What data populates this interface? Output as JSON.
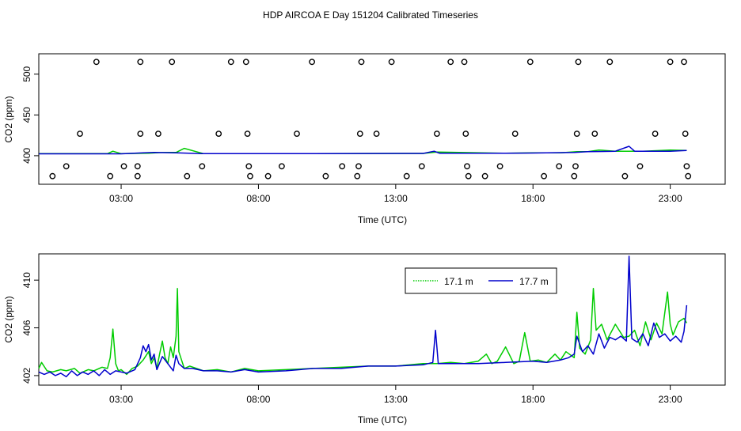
{
  "title": "HDP AIRCOA E  Day 151204  Calibrated Timeseries",
  "colors": {
    "green": "#00cc00",
    "blue": "#0000cc",
    "axis": "#000000"
  },
  "chart_data": [
    {
      "type": "line",
      "panel": "top",
      "xlabel": "Time (UTC)",
      "ylabel": "CO2 (ppm)",
      "xlim": [
        0.0,
        25.0
      ],
      "ylim": [
        365,
        525
      ],
      "x_ticks": [
        3,
        8,
        13,
        18,
        23
      ],
      "x_tick_labels": [
        "03:00",
        "08:00",
        "13:00",
        "18:00",
        "23:00"
      ],
      "y_ticks": [
        400,
        450,
        500
      ],
      "y_tick_labels": [
        "400",
        "450",
        "500"
      ],
      "grid": false,
      "series": [
        {
          "color": "#00cc00",
          "x": [
            0.0,
            2.5,
            2.7,
            3.0,
            4.0,
            4.5,
            5.0,
            5.3,
            6.0,
            10.0,
            14.0,
            14.5,
            17.0,
            18.0,
            19.0,
            19.6,
            20.0,
            20.4,
            21.0,
            22.0,
            23.0,
            23.6
          ],
          "values": [
            402.5,
            402.5,
            405.5,
            402.5,
            403.0,
            404.0,
            404.0,
            409.0,
            402.5,
            402.6,
            402.8,
            404.5,
            403.0,
            403.5,
            403.5,
            405.0,
            405.0,
            407.0,
            405.5,
            405.5,
            407.0,
            406.5
          ]
        },
        {
          "color": "#0000cc",
          "x": [
            0.0,
            3.0,
            3.8,
            4.2,
            5.0,
            6.0,
            10.0,
            14.0,
            14.4,
            14.6,
            17.0,
            18.0,
            19.5,
            20.0,
            21.0,
            21.5,
            21.7,
            22.0,
            23.0,
            23.6
          ],
          "values": [
            402.3,
            402.3,
            403.5,
            404.0,
            403.5,
            402.5,
            402.6,
            402.8,
            405.5,
            403.0,
            403.0,
            403.3,
            404.0,
            405.0,
            405.5,
            411.5,
            405.5,
            405.5,
            405.5,
            406.5
          ]
        }
      ],
      "markers": {
        "symbol": "o",
        "points": [
          {
            "x": 0.5,
            "y": 375
          },
          {
            "x": 1.0,
            "y": 387
          },
          {
            "x": 1.5,
            "y": 427
          },
          {
            "x": 2.1,
            "y": 515
          },
          {
            "x": 2.6,
            "y": 375
          },
          {
            "x": 3.1,
            "y": 387
          },
          {
            "x": 3.6,
            "y": 375
          },
          {
            "x": 3.6,
            "y": 387
          },
          {
            "x": 3.7,
            "y": 427
          },
          {
            "x": 3.7,
            "y": 515
          },
          {
            "x": 4.35,
            "y": 427
          },
          {
            "x": 4.85,
            "y": 515
          },
          {
            "x": 5.4,
            "y": 375
          },
          {
            "x": 5.95,
            "y": 387
          },
          {
            "x": 6.55,
            "y": 427
          },
          {
            "x": 7.0,
            "y": 515
          },
          {
            "x": 7.55,
            "y": 515
          },
          {
            "x": 7.6,
            "y": 427
          },
          {
            "x": 7.65,
            "y": 387
          },
          {
            "x": 7.7,
            "y": 375
          },
          {
            "x": 8.35,
            "y": 375
          },
          {
            "x": 8.85,
            "y": 387
          },
          {
            "x": 9.4,
            "y": 427
          },
          {
            "x": 9.95,
            "y": 515
          },
          {
            "x": 10.45,
            "y": 375
          },
          {
            "x": 11.05,
            "y": 387
          },
          {
            "x": 11.6,
            "y": 375
          },
          {
            "x": 11.65,
            "y": 387
          },
          {
            "x": 11.7,
            "y": 427
          },
          {
            "x": 11.75,
            "y": 515
          },
          {
            "x": 12.3,
            "y": 427
          },
          {
            "x": 12.85,
            "y": 515
          },
          {
            "x": 13.4,
            "y": 375
          },
          {
            "x": 13.95,
            "y": 387
          },
          {
            "x": 14.5,
            "y": 427
          },
          {
            "x": 15.0,
            "y": 515
          },
          {
            "x": 15.5,
            "y": 515
          },
          {
            "x": 15.55,
            "y": 427
          },
          {
            "x": 15.6,
            "y": 387
          },
          {
            "x": 15.65,
            "y": 375
          },
          {
            "x": 16.25,
            "y": 375
          },
          {
            "x": 16.8,
            "y": 387
          },
          {
            "x": 17.35,
            "y": 427
          },
          {
            "x": 17.9,
            "y": 515
          },
          {
            "x": 18.4,
            "y": 375
          },
          {
            "x": 18.95,
            "y": 387
          },
          {
            "x": 19.5,
            "y": 375
          },
          {
            "x": 19.55,
            "y": 387
          },
          {
            "x": 19.6,
            "y": 427
          },
          {
            "x": 19.65,
            "y": 515
          },
          {
            "x": 20.25,
            "y": 427
          },
          {
            "x": 20.8,
            "y": 515
          },
          {
            "x": 21.35,
            "y": 375
          },
          {
            "x": 21.9,
            "y": 387
          },
          {
            "x": 22.45,
            "y": 427
          },
          {
            "x": 23.0,
            "y": 515
          },
          {
            "x": 23.5,
            "y": 515
          },
          {
            "x": 23.55,
            "y": 427
          },
          {
            "x": 23.6,
            "y": 387
          },
          {
            "x": 23.65,
            "y": 375
          }
        ]
      }
    },
    {
      "type": "line",
      "panel": "bottom",
      "xlabel": "Time (UTC)",
      "ylabel": "CO2 (ppm)",
      "xlim": [
        0.0,
        25.0
      ],
      "ylim": [
        401.2,
        412.2
      ],
      "x_ticks": [
        3,
        8,
        13,
        18,
        23
      ],
      "x_tick_labels": [
        "03:00",
        "08:00",
        "13:00",
        "18:00",
        "23:00"
      ],
      "y_ticks": [
        402,
        406,
        410
      ],
      "y_tick_labels": [
        "402",
        "406",
        "410"
      ],
      "grid": false,
      "legend": {
        "placement": "top-right",
        "entries": [
          {
            "label": "17.1 m",
            "color": "#00cc00",
            "dash": "dotted"
          },
          {
            "label": "17.7 m",
            "color": "#0000cc",
            "dash": "solid"
          }
        ]
      },
      "series": [
        {
          "name": "17.1 m",
          "color": "#00cc00",
          "x": [
            0.0,
            0.1,
            0.3,
            0.5,
            0.8,
            1.0,
            1.3,
            1.5,
            1.8,
            2.0,
            2.3,
            2.5,
            2.6,
            2.7,
            2.8,
            2.9,
            3.0,
            3.2,
            3.4,
            3.6,
            3.8,
            4.0,
            4.1,
            4.2,
            4.3,
            4.4,
            4.5,
            4.6,
            4.7,
            4.8,
            4.9,
            5.0,
            5.05,
            5.1,
            5.3,
            5.5,
            6.0,
            6.5,
            7.0,
            7.5,
            8.0,
            9.0,
            10.0,
            11.0,
            12.0,
            13.0,
            14.0,
            14.5,
            15.0,
            15.5,
            16.0,
            16.3,
            16.5,
            16.7,
            17.0,
            17.3,
            17.5,
            17.7,
            17.9,
            18.2,
            18.5,
            18.8,
            19.0,
            19.2,
            19.5,
            19.6,
            19.7,
            19.9,
            20.1,
            20.2,
            20.3,
            20.5,
            20.7,
            21.0,
            21.3,
            21.5,
            21.7,
            21.9,
            22.1,
            22.3,
            22.5,
            22.7,
            22.9,
            23.0,
            23.1,
            23.3,
            23.5,
            23.6
          ],
          "values": [
            402.6,
            403.1,
            402.4,
            402.3,
            402.5,
            402.4,
            402.6,
            402.2,
            402.5,
            402.4,
            402.7,
            402.6,
            403.5,
            405.9,
            403.0,
            402.4,
            402.5,
            402.1,
            402.6,
            402.8,
            403.3,
            404.0,
            403.0,
            403.5,
            402.6,
            403.8,
            404.9,
            403.5,
            403.0,
            404.4,
            403.5,
            405.3,
            409.3,
            404.0,
            402.6,
            402.8,
            402.4,
            402.5,
            402.3,
            402.6,
            402.4,
            402.5,
            402.6,
            402.7,
            402.8,
            402.8,
            403.0,
            403.0,
            403.1,
            403.0,
            403.2,
            403.8,
            403.0,
            403.2,
            404.4,
            403.0,
            403.2,
            405.6,
            403.2,
            403.3,
            403.1,
            403.8,
            403.3,
            404.0,
            403.5,
            407.3,
            404.3,
            403.8,
            405.0,
            409.3,
            405.8,
            406.3,
            405.0,
            406.3,
            405.2,
            405.3,
            405.8,
            404.5,
            406.5,
            405.0,
            406.4,
            405.5,
            409.0,
            406.3,
            405.4,
            406.5,
            406.8,
            406.4
          ]
        },
        {
          "name": "17.7 m",
          "color": "#0000cc",
          "x": [
            0.0,
            0.2,
            0.4,
            0.6,
            0.8,
            1.0,
            1.2,
            1.4,
            1.6,
            1.8,
            2.0,
            2.2,
            2.4,
            2.6,
            2.8,
            3.0,
            3.2,
            3.5,
            3.7,
            3.8,
            3.9,
            4.0,
            4.1,
            4.2,
            4.3,
            4.5,
            4.7,
            4.9,
            5.0,
            5.1,
            5.3,
            5.6,
            6.0,
            6.5,
            7.0,
            7.5,
            8.0,
            9.0,
            10.0,
            11.0,
            12.0,
            13.0,
            14.0,
            14.35,
            14.45,
            14.55,
            15.0,
            16.0,
            17.0,
            18.0,
            18.5,
            19.0,
            19.3,
            19.5,
            19.6,
            19.8,
            20.0,
            20.2,
            20.4,
            20.6,
            20.8,
            21.0,
            21.2,
            21.4,
            21.5,
            21.6,
            21.8,
            22.0,
            22.2,
            22.4,
            22.6,
            22.8,
            23.0,
            23.2,
            23.4,
            23.5,
            23.6
          ],
          "values": [
            402.3,
            402.1,
            402.3,
            402.0,
            402.2,
            401.9,
            402.4,
            402.0,
            402.3,
            402.1,
            402.4,
            402.0,
            402.5,
            402.1,
            402.4,
            402.3,
            402.2,
            402.5,
            403.5,
            404.5,
            404.0,
            404.6,
            403.3,
            403.8,
            402.5,
            403.6,
            403.0,
            402.4,
            403.7,
            403.0,
            402.6,
            402.6,
            402.4,
            402.4,
            402.3,
            402.5,
            402.3,
            402.4,
            402.6,
            402.6,
            402.8,
            402.8,
            402.9,
            403.1,
            405.8,
            403.0,
            403.0,
            403.0,
            403.1,
            403.2,
            403.1,
            403.3,
            403.5,
            403.8,
            405.3,
            404.0,
            404.5,
            403.8,
            405.5,
            404.3,
            405.2,
            405.0,
            405.3,
            404.9,
            412.0,
            405.1,
            404.8,
            405.5,
            404.5,
            406.4,
            405.2,
            405.5,
            404.9,
            405.3,
            404.8,
            405.7,
            407.9
          ]
        }
      ]
    }
  ]
}
